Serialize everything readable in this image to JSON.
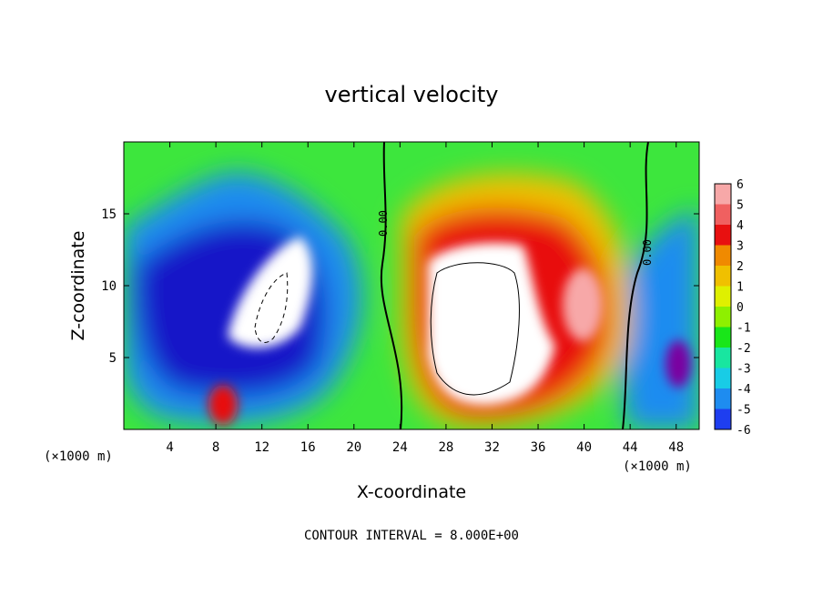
{
  "chart_data": {
    "type": "heatmap",
    "title": "vertical velocity",
    "xlabel": "X-coordinate",
    "ylabel": "Z-coordinate",
    "x_unit_left": "(×1000 m)",
    "x_unit_right": "(×1000 m)",
    "xlim": [
      0,
      50
    ],
    "ylim": [
      0,
      20
    ],
    "x_ticks": [
      4,
      8,
      12,
      16,
      20,
      24,
      28,
      32,
      36,
      40,
      44,
      48
    ],
    "y_ticks": [
      5,
      10,
      15
    ],
    "colorbar_levels": [
      6,
      5,
      4,
      3,
      2,
      1,
      0,
      -1,
      -2,
      -3,
      -4,
      -5,
      -6
    ],
    "colorbar_colors": [
      "#f7a8a8",
      "#f06060",
      "#e81010",
      "#f08a00",
      "#f0c000",
      "#dff000",
      "#8ef000",
      "#19e619",
      "#18e6a0",
      "#18cce6",
      "#1e8cf0",
      "#1e3ef0",
      "#1414c8",
      "#7a00a0"
    ],
    "zero_contour_labels": [
      "0.00",
      "0.00"
    ],
    "footer": "CONTOUR INTERVAL = 8.000E+00",
    "features": [
      {
        "sign": "positive",
        "x": 32,
        "z": 8,
        "strength": 1.5
      },
      {
        "sign": "positive",
        "x": 39,
        "z": 8,
        "strength": 1.0
      },
      {
        "sign": "negative",
        "x": 14,
        "z": 9,
        "strength": 1.3
      },
      {
        "sign": "negative",
        "x": 6,
        "z": 7,
        "strength": 1.0
      },
      {
        "sign": "negative",
        "x": 48,
        "z": 6,
        "strength": 1.0
      },
      {
        "sign": "positive",
        "x": 9,
        "z": 2,
        "strength": 0.6
      }
    ]
  }
}
